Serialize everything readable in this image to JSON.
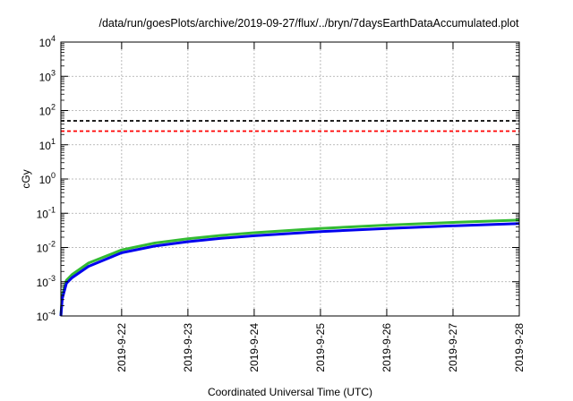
{
  "chart_data": {
    "type": "line",
    "title": "/data/run/goesPlots/archive/2019-09-27/flux/../bryn/7daysEarthDataAccumulated.plot",
    "xlabel": "Coordinated Universal Time (UTC)",
    "ylabel": "cGy",
    "y_scale": "log",
    "ylim": [
      0.0001,
      10000
    ],
    "y_ticks": [
      {
        "value": 0.0001,
        "base": "10",
        "exp": "-4"
      },
      {
        "value": 0.001,
        "base": "10",
        "exp": "-3"
      },
      {
        "value": 0.01,
        "base": "10",
        "exp": "-2"
      },
      {
        "value": 0.1,
        "base": "10",
        "exp": "-1"
      },
      {
        "value": 1,
        "base": "10",
        "exp": "0"
      },
      {
        "value": 10,
        "base": "10",
        "exp": "1"
      },
      {
        "value": 100,
        "base": "10",
        "exp": "2"
      },
      {
        "value": 1000,
        "base": "10",
        "exp": "3"
      },
      {
        "value": 10000,
        "base": "10",
        "exp": "4"
      }
    ],
    "xlim": [
      "2019-09-21T02:00",
      "2019-09-28T00:00"
    ],
    "x_ticks": [
      "2019-9-22",
      "2019-9-23",
      "2019-9-24",
      "2019-9-25",
      "2019-9-26",
      "2019-9-27",
      "2019-9-28"
    ],
    "grid": true,
    "threshold_lines": [
      {
        "value": 50,
        "color": "#000000",
        "style": "dashed"
      },
      {
        "value": 25,
        "color": "#ff0000",
        "style": "dashed"
      }
    ],
    "series": [
      {
        "color": "#33bb33",
        "x": [
          "2019-09-21T02:00",
          "2019-09-21T02:30",
          "2019-09-21T04:00",
          "2019-09-21T06:00",
          "2019-09-21T12:00",
          "2019-09-22T00:00",
          "2019-09-22T12:00",
          "2019-09-23T00:00",
          "2019-09-23T12:00",
          "2019-09-24T00:00",
          "2019-09-25T00:00",
          "2019-09-26T00:00",
          "2019-09-27T00:00",
          "2019-09-28T00:00"
        ],
        "values": [
          0.0001,
          0.0004,
          0.0011,
          0.0016,
          0.0035,
          0.0085,
          0.0135,
          0.018,
          0.0225,
          0.027,
          0.036,
          0.045,
          0.054,
          0.063
        ]
      },
      {
        "color": "#0000ee",
        "x": [
          "2019-09-21T02:00",
          "2019-09-21T02:30",
          "2019-09-21T04:00",
          "2019-09-21T06:00",
          "2019-09-21T12:00",
          "2019-09-22T00:00",
          "2019-09-22T12:00",
          "2019-09-23T00:00",
          "2019-09-23T12:00",
          "2019-09-24T00:00",
          "2019-09-25T00:00",
          "2019-09-26T00:00",
          "2019-09-27T00:00",
          "2019-09-28T00:00"
        ],
        "values": [
          0.0001,
          0.00032,
          0.0009,
          0.0013,
          0.0028,
          0.007,
          0.011,
          0.0148,
          0.0185,
          0.022,
          0.029,
          0.036,
          0.043,
          0.05
        ]
      }
    ]
  }
}
